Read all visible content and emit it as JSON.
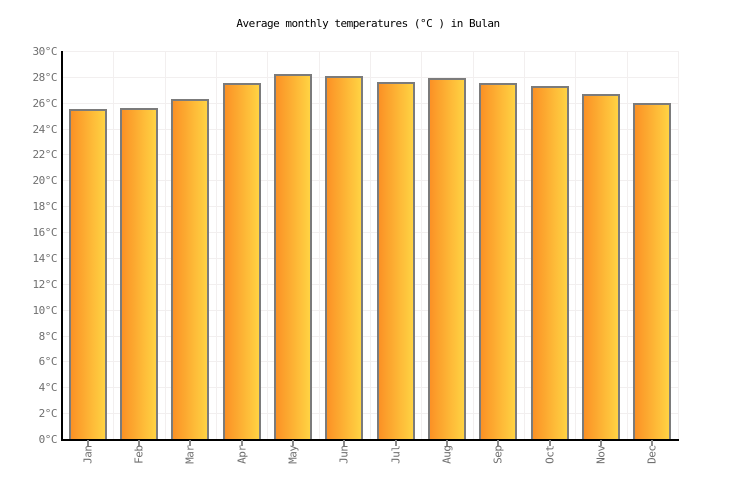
{
  "title": "Average monthly temperatures (°C ) in Bulan",
  "colors": {
    "background": "#ffffff",
    "axis": "#000000",
    "gridline": "#f2efef",
    "bar_gradient_left": "#fb9125",
    "bar_gradient_right": "#ffd343",
    "bar_border": "#7b7b7b",
    "tick_label": "#6f6f6f",
    "tick_mark": "#8a8a8a",
    "title_text": "#000000"
  },
  "chart_data": {
    "type": "bar",
    "title": "Average monthly temperatures (°C ) in Bulan",
    "categories": [
      "Jan",
      "Feb",
      "Mar",
      "Apr",
      "May",
      "Jun",
      "Jul",
      "Aug",
      "Sep",
      "Oct",
      "Nov",
      "Dec"
    ],
    "values": [
      25.5,
      25.6,
      26.3,
      27.5,
      28.2,
      28.1,
      27.6,
      27.9,
      27.5,
      27.3,
      26.7,
      26.0
    ],
    "series_name": "Average monthly temperature (°C)",
    "xlabel": "",
    "ylabel": "°C",
    "ylim": [
      0,
      30
    ],
    "ytick_step": 2,
    "ytick_suffix": "°C",
    "grid": true,
    "legend": "none",
    "bar_color_left": "#fb9125",
    "bar_color_right": "#ffd343",
    "bar_border_color": "#7b7b7b"
  }
}
